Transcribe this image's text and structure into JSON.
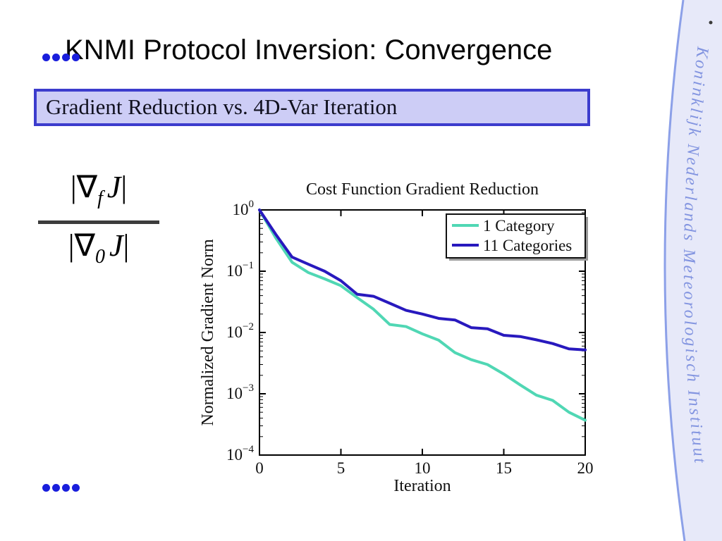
{
  "slide": {
    "title": "KNMI Protocol Inversion: Convergence",
    "subtitle": "Gradient Reduction vs. 4D-Var Iteration",
    "sidebar_text": "Koninklijk Nederlands Meteorologisch Instituut",
    "formula": {
      "numerator": {
        "open": "|",
        "nabla": "∇",
        "sub": "f",
        "var": "J",
        "close": "|"
      },
      "denominator": {
        "open": "|",
        "nabla": "∇",
        "sub": "0",
        "var": "J",
        "close": "|"
      }
    },
    "colors": {
      "bullet_blue": "#191edc",
      "subtitle_border": "#3c3ccd",
      "subtitle_fill": "#cdcdf6",
      "sidebar_fill": "#e7e9f9",
      "sidebar_line": "#8ca0e8",
      "sidebar_text": "#8294e0"
    }
  },
  "chart_data": {
    "type": "line",
    "title": "Cost Function Gradient Reduction",
    "xlabel": "Iteration",
    "ylabel": "Normalized Gradient Norm",
    "yscale": "log",
    "grid": false,
    "legend_position": "upper right",
    "xlim": [
      0,
      20
    ],
    "ylim_exp": [
      -4,
      0
    ],
    "x_ticks": [
      0,
      5,
      10,
      15,
      20
    ],
    "y_tick_exponents": [
      0,
      -1,
      -2,
      -3,
      -4
    ],
    "x": [
      0,
      1,
      2,
      3,
      4,
      5,
      6,
      7,
      8,
      9,
      10,
      11,
      12,
      13,
      14,
      15,
      16,
      17,
      18,
      19,
      20
    ],
    "series": [
      {
        "name": "1 Category",
        "color": "#50d7b4",
        "values": [
          1.0,
          0.35,
          0.14,
          0.095,
          0.075,
          0.058,
          0.037,
          0.024,
          0.0135,
          0.0125,
          0.0095,
          0.0075,
          0.0047,
          0.0036,
          0.003,
          0.0021,
          0.0014,
          0.00095,
          0.00078,
          0.0005,
          0.00037
        ]
      },
      {
        "name": "11 Categories",
        "color": "#2819be",
        "values": [
          1.0,
          0.4,
          0.17,
          0.13,
          0.1,
          0.07,
          0.042,
          0.039,
          0.03,
          0.023,
          0.02,
          0.017,
          0.016,
          0.012,
          0.0115,
          0.009,
          0.0086,
          0.0076,
          0.0066,
          0.0054,
          0.0052
        ]
      }
    ]
  }
}
